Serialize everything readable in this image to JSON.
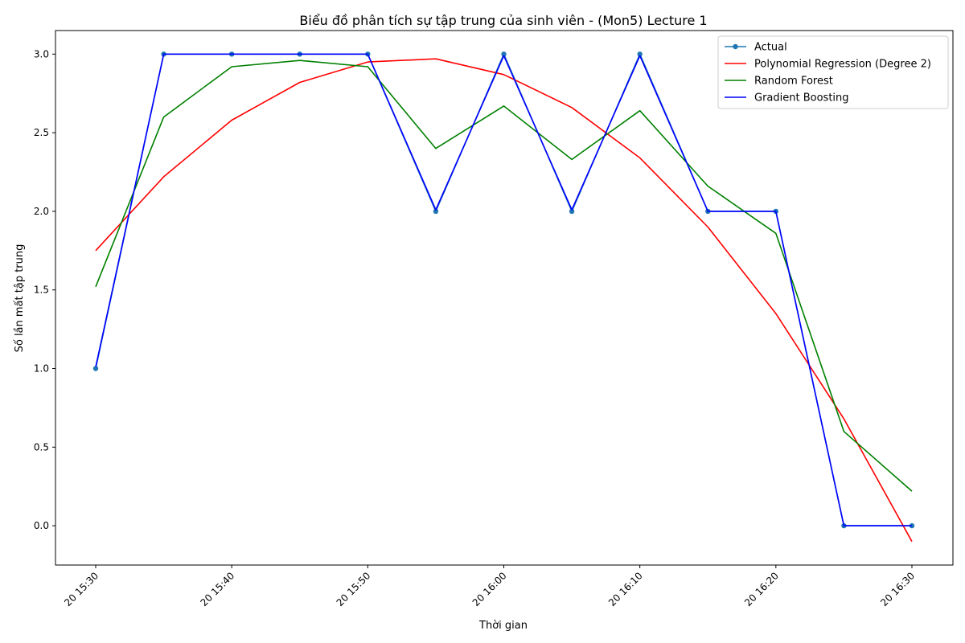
{
  "chart_data": {
    "type": "line",
    "title": "Biểu đồ phân tích sự tập trung của sinh viên - (Mon5) Lecture 1",
    "xlabel": "Thời gian",
    "ylabel": "Số lần mất tập trung",
    "x": [
      "20 15:30",
      "20 15:35",
      "20 15:40",
      "20 15:45",
      "20 15:50",
      "20 15:55",
      "20 16:00",
      "20 16:05",
      "20 16:10",
      "20 16:15",
      "20 16:20",
      "20 16:25",
      "20 16:30"
    ],
    "x_ticks": [
      "20 15:30",
      "20 15:40",
      "20 15:50",
      "20 16:00",
      "20 16:10",
      "20 16:20",
      "20 16:30"
    ],
    "ylim": [
      -0.25,
      3.15
    ],
    "y_ticks": [
      0.0,
      0.5,
      1.0,
      1.5,
      2.0,
      2.5,
      3.0
    ],
    "y_tick_labels": [
      "0.0",
      "0.5",
      "1.0",
      "1.5",
      "2.0",
      "2.5",
      "3.0"
    ],
    "grid": false,
    "legend_position": "top-right",
    "series": [
      {
        "name": "Actual",
        "color": "#1f77b4",
        "marker": "circle",
        "values": [
          1,
          3,
          3,
          3,
          3,
          2,
          3,
          2,
          3,
          2,
          2,
          0,
          0
        ]
      },
      {
        "name": "Polynomial Regression (Degree 2)",
        "color": "#ff0000",
        "marker": "none",
        "values": [
          1.75,
          2.22,
          2.58,
          2.82,
          2.95,
          2.97,
          2.87,
          2.66,
          2.34,
          1.9,
          1.35,
          0.68,
          -0.1
        ]
      },
      {
        "name": "Random Forest",
        "color": "#008000",
        "marker": "none",
        "values": [
          1.52,
          2.6,
          2.92,
          2.96,
          2.92,
          2.4,
          2.67,
          2.33,
          2.64,
          2.16,
          1.86,
          0.6,
          0.22
        ]
      },
      {
        "name": "Gradient Boosting",
        "color": "#0000ff",
        "marker": "none",
        "values": [
          1.01,
          3.0,
          3.0,
          3.0,
          3.0,
          2.01,
          2.99,
          2.01,
          2.99,
          2.0,
          2.0,
          0.0,
          0.0
        ]
      }
    ]
  }
}
